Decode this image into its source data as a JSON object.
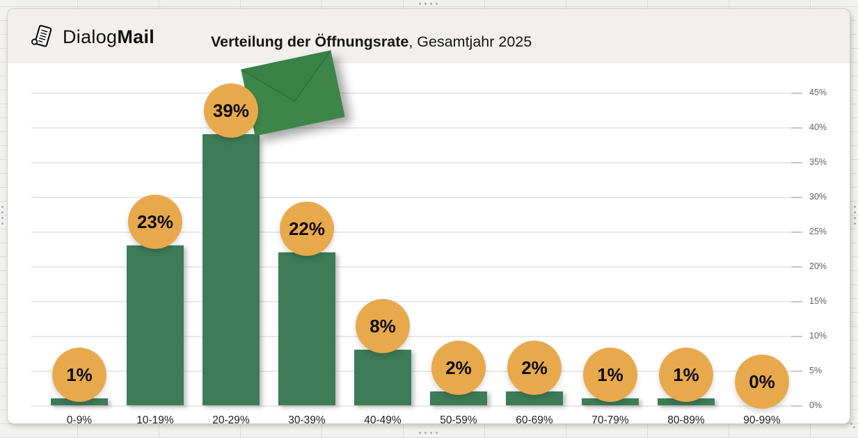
{
  "header": {
    "logo": {
      "icon": "newspaper-icon",
      "brand_regular": "Dialog",
      "brand_bold": "Mail"
    },
    "title_bold": "Verteilung der Öffnungsrate",
    "title_regular": ", Gesamtjahr 2025"
  },
  "chart_data": {
    "type": "bar",
    "title": "Verteilung der Öffnungsrate, Gesamtjahr 2025",
    "xlabel": "",
    "ylabel": "",
    "categories": [
      "0-9%",
      "10-19%",
      "20-29%",
      "30-39%",
      "40-49%",
      "50-59%",
      "60-69%",
      "70-79%",
      "80-89%",
      "90-99%"
    ],
    "values": [
      1,
      23,
      39,
      22,
      8,
      2,
      2,
      1,
      1,
      0
    ],
    "data_labels": [
      "1%",
      "23%",
      "39%",
      "22%",
      "8%",
      "2%",
      "2%",
      "1%",
      "1%",
      "0%"
    ],
    "y_ticks": [
      "0%",
      "5%",
      "10%",
      "15%",
      "20%",
      "25%",
      "30%",
      "35%",
      "40%",
      "45%"
    ],
    "ylim": [
      0,
      45
    ],
    "y_axis_side": "right",
    "grid": true,
    "legend": false,
    "colors": {
      "bar": "#3d7c57",
      "data_label_bg": "#e8a94d",
      "data_label_text": "#0d0d0d",
      "envelope_body": "#3d8549",
      "envelope_flap": "#3a8146",
      "envelope_fold_line": "#2d6f39",
      "grid_line": "#e8e8e8",
      "tick_mark": "#c6c6c6",
      "axis_text": "#5f5f5f"
    },
    "decoration": {
      "name": "green-envelope-image",
      "position": "over tallest bar (20-29%)"
    }
  }
}
